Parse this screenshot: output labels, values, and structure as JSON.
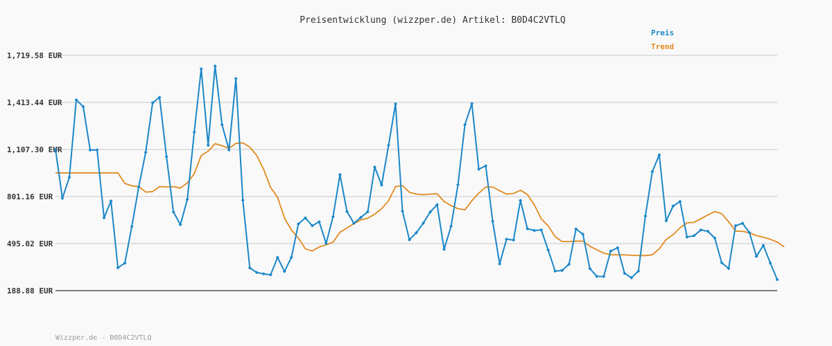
{
  "chart_data": {
    "type": "line",
    "title": "Preisentwicklung (wizzper.de) Artikel: B0D4C2VTLQ",
    "footer": "Wizzper.de - B0D4C2VTLQ",
    "xlabel": "",
    "ylabel": "",
    "ylim": [
      188.88,
      1719.58
    ],
    "yticks": [
      188.88,
      495.02,
      801.16,
      1107.3,
      1413.44,
      1719.58
    ],
    "ytick_labels": [
      "188.88 EUR",
      "495.02 EUR",
      "801.16 EUR",
      "1,107.30 EUR",
      "1,413.44 EUR",
      "1,719.58 EUR"
    ],
    "grid": true,
    "legend_position": "top-right",
    "colors": {
      "preis": "#1a87c8",
      "trend": "#e08a1e",
      "grid": "#e0e0e0",
      "axis": "#555555"
    },
    "series": [
      {
        "name": "Preis",
        "values": [
          1108,
          790,
          926,
          1430,
          1386,
          1104,
          1104,
          663,
          772,
          338,
          368,
          606,
          864,
          1089,
          1411,
          1446,
          1060,
          701,
          618,
          782,
          1220,
          1632,
          1135,
          1650,
          1269,
          1104,
          1569,
          777,
          337,
          307,
          298,
          292,
          405,
          314,
          405,
          623,
          662,
          611,
          637,
          496,
          670,
          944,
          704,
          627,
          665,
          702,
          993,
          876,
          1135,
          1404,
          706,
          520,
          566,
          628,
          701,
          748,
          458,
          607,
          878,
          1269,
          1405,
          979,
          1001,
          640,
          363,
          524,
          518,
          776,
          592,
          580,
          584,
          453,
          316,
          320,
          361,
          590,
          556,
          333,
          282,
          281,
          446,
          468,
          302,
          273,
          316,
          674,
          963,
          1072,
          643,
          739,
          769,
          538,
          546,
          584,
          575,
          531,
          370,
          333,
          611,
          627,
          566,
          412,
          483,
          369,
          261
        ],
        "marker": "diamond"
      },
      {
        "name": "Trend",
        "values": [
          955,
          955,
          955,
          955,
          955,
          955,
          955,
          955,
          955,
          955,
          886,
          871,
          866,
          830,
          833,
          866,
          863,
          866,
          856,
          890,
          950,
          1068,
          1096,
          1145,
          1132,
          1114,
          1147,
          1150,
          1123,
          1068,
          978,
          860,
          797,
          661,
          583,
          531,
          461,
          447,
          473,
          487,
          504,
          569,
          597,
          624,
          649,
          660,
          686,
          722,
          774,
          866,
          872,
          829,
          817,
          813,
          817,
          819,
          769,
          742,
          722,
          715,
          774,
          823,
          863,
          863,
          839,
          817,
          821,
          842,
          815,
          747,
          656,
          610,
          540,
          508,
          508,
          511,
          511,
          478,
          455,
          433,
          422,
          422,
          422,
          419,
          417,
          417,
          422,
          461,
          522,
          553,
          598,
          630,
          633,
          657,
          681,
          703,
          690,
          637,
          577,
          575,
          565,
          547,
          536,
          523,
          505,
          473
        ]
      }
    ]
  }
}
